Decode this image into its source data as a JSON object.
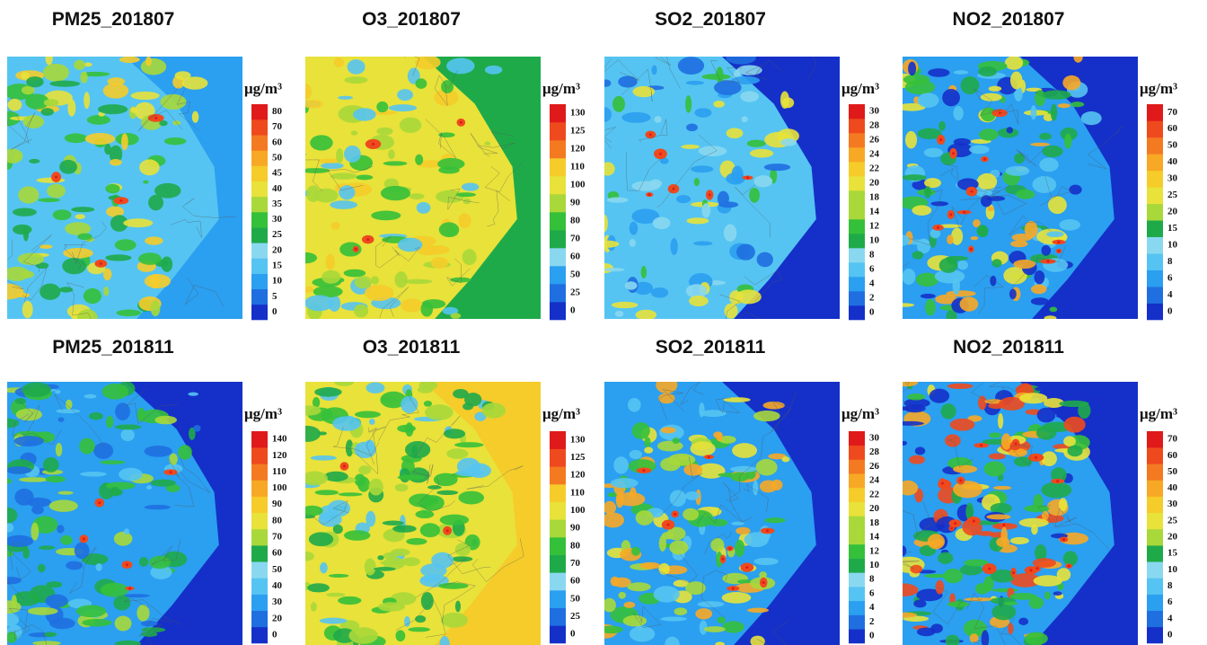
{
  "panels": [
    {
      "title": "PM25_201807",
      "unit": "μg/m³",
      "levels": [
        0,
        5,
        10,
        15,
        20,
        25,
        30,
        35,
        40,
        45,
        50,
        60,
        70,
        80
      ]
    },
    {
      "title": "O3_201807",
      "unit": "μg/m³",
      "levels": [
        0,
        25,
        50,
        60,
        70,
        80,
        90,
        100,
        110,
        120,
        125,
        130
      ]
    },
    {
      "title": "SO2_201807",
      "unit": "μg/m³",
      "levels": [
        0,
        2,
        4,
        6,
        8,
        10,
        12,
        14,
        18,
        20,
        22,
        24,
        26,
        28,
        30
      ]
    },
    {
      "title": "NO2_201807",
      "unit": "μg/m³",
      "levels": [
        0,
        4,
        6,
        8,
        10,
        15,
        20,
        25,
        30,
        40,
        50,
        60,
        70
      ]
    },
    {
      "title": "PM25_201811",
      "unit": "μg/m³",
      "levels": [
        0,
        20,
        30,
        40,
        50,
        60,
        70,
        80,
        90,
        100,
        110,
        120,
        140
      ]
    },
    {
      "title": "O3_201811",
      "unit": "μg/m³",
      "levels": [
        0,
        25,
        50,
        60,
        70,
        80,
        90,
        100,
        110,
        120,
        125,
        130
      ]
    },
    {
      "title": "SO2_201811",
      "unit": "μg/m³",
      "levels": [
        0,
        2,
        4,
        6,
        8,
        10,
        12,
        14,
        18,
        20,
        22,
        24,
        26,
        28,
        30
      ]
    },
    {
      "title": "NO2_201811",
      "unit": "μg/m³",
      "levels": [
        0,
        4,
        6,
        8,
        10,
        15,
        20,
        25,
        30,
        40,
        50,
        60,
        70
      ]
    }
  ],
  "colormap": [
    "#1530c8",
    "#1f6fe0",
    "#2b9ff0",
    "#55c4f2",
    "#8ad8f0",
    "#1faa4a",
    "#35c03a",
    "#a8d83a",
    "#e8e23a",
    "#f5cc2a",
    "#f7a825",
    "#f47a22",
    "#ee4a1e",
    "#e01a1a"
  ]
}
